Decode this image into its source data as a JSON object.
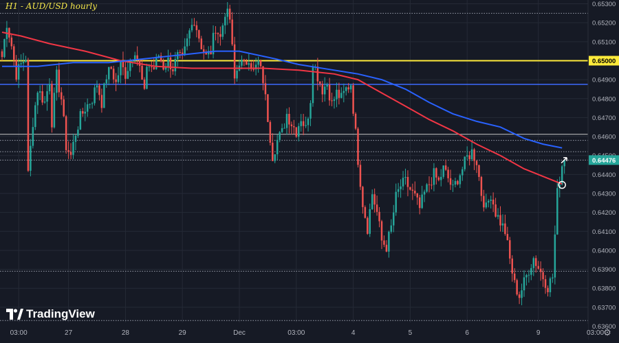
{
  "header": {
    "title": "H1 - AUD/USD hourly"
  },
  "branding": {
    "name": "TradingView"
  },
  "colors": {
    "background": "#161a25",
    "up": "#26a69a",
    "down": "#ef5350",
    "ma_red": "#f23645",
    "ma_blue": "#2962ff",
    "level_yellow": "#ffeb3b",
    "level_blue": "#3d6bff",
    "grid": "#252a36",
    "axis_text": "#b2b5be"
  },
  "chart_data": {
    "type": "candlestick",
    "title": "H1 - AUD/USD hourly",
    "timeframe": "1h",
    "ylim": [
      0.6362,
      0.6532
    ],
    "y_ticks": [
      "0.65300",
      "0.65200",
      "0.65100",
      "0.65000",
      "0.64900",
      "0.64800",
      "0.64700",
      "0.64600",
      "0.64500",
      "0.64400",
      "0.64300",
      "0.64200",
      "0.64100",
      "0.64000",
      "0.63900",
      "0.63800",
      "0.63700",
      "0.63600"
    ],
    "x_ticks": [
      {
        "label": "03:00",
        "bar": 7
      },
      {
        "label": "27",
        "bar": 28
      },
      {
        "label": "28",
        "bar": 52
      },
      {
        "label": "29",
        "bar": 76
      },
      {
        "label": "Dec",
        "bar": 100
      },
      {
        "label": "03:00",
        "bar": 124
      },
      {
        "label": "4",
        "bar": 148
      },
      {
        "label": "5",
        "bar": 172
      },
      {
        "label": "6",
        "bar": 196
      },
      {
        "label": "9",
        "bar": 226
      },
      {
        "label": "03:00",
        "bar": 250
      }
    ],
    "current_price": {
      "label": "0.64476",
      "value": 0.64476
    },
    "levels": [
      {
        "name": "0.65000 resistance",
        "label": "0.65000",
        "value": 0.65,
        "style": "solid",
        "color": "#ffeb3b",
        "width": 2
      },
      {
        "name": "blue level",
        "value": 0.64875,
        "style": "solid",
        "color": "#3d6bff",
        "width": 1.5
      },
      {
        "name": "white level",
        "value": 0.64612,
        "style": "solid",
        "color": "#c8c8c8",
        "width": 1
      },
      {
        "name": "dotted 0.6525",
        "value": 0.6525,
        "style": "dotted",
        "color": "#9aa0ad",
        "width": 1
      },
      {
        "name": "dotted 0.6458",
        "value": 0.6458,
        "style": "dotted",
        "color": "#9aa0ad",
        "width": 1
      },
      {
        "name": "dotted 0.6452",
        "value": 0.6452,
        "style": "dotted",
        "color": "#9aa0ad",
        "width": 1
      },
      {
        "name": "dotted 0.6447",
        "value": 0.64476,
        "style": "dotted",
        "color": "#9aa0ad",
        "width": 1
      },
      {
        "name": "dotted 0.6389",
        "value": 0.6389,
        "style": "dotted",
        "color": "#9aa0ad",
        "width": 1
      },
      {
        "name": "dotted 0.6363",
        "value": 0.6363,
        "style": "dotted",
        "color": "#9aa0ad",
        "width": 1
      }
    ],
    "close_path": [
      [
        0,
        0.6502
      ],
      [
        2,
        0.652
      ],
      [
        4,
        0.6508
      ],
      [
        6,
        0.6493
      ],
      [
        8,
        0.6498
      ],
      [
        10,
        0.6502
      ],
      [
        11,
        0.644
      ],
      [
        13,
        0.6468
      ],
      [
        15,
        0.6485
      ],
      [
        18,
        0.6478
      ],
      [
        20,
        0.649
      ],
      [
        21,
        0.6468
      ],
      [
        23,
        0.6492
      ],
      [
        25,
        0.648
      ],
      [
        27,
        0.6455
      ],
      [
        29,
        0.645
      ],
      [
        31,
        0.6462
      ],
      [
        33,
        0.647
      ],
      [
        35,
        0.6475
      ],
      [
        38,
        0.648
      ],
      [
        40,
        0.6488
      ],
      [
        42,
        0.6478
      ],
      [
        44,
        0.6492
      ],
      [
        46,
        0.6496
      ],
      [
        48,
        0.6488
      ],
      [
        50,
        0.6498
      ],
      [
        52,
        0.6493
      ],
      [
        54,
        0.65
      ],
      [
        56,
        0.6506
      ],
      [
        58,
        0.6496
      ],
      [
        60,
        0.6482
      ],
      [
        61,
        0.6498
      ],
      [
        64,
        0.6496
      ],
      [
        66,
        0.6503
      ],
      [
        68,
        0.6497
      ],
      [
        70,
        0.65
      ],
      [
        72,
        0.6496
      ],
      [
        74,
        0.6502
      ],
      [
        76,
        0.65
      ],
      [
        79,
        0.6515
      ],
      [
        81,
        0.6522
      ],
      [
        84,
        0.6508
      ],
      [
        86,
        0.6502
      ],
      [
        88,
        0.6505
      ],
      [
        90,
        0.6518
      ],
      [
        92,
        0.6512
      ],
      [
        94,
        0.6526
      ],
      [
        96,
        0.6522
      ],
      [
        98,
        0.649
      ],
      [
        100,
        0.65
      ],
      [
        102,
        0.6497
      ],
      [
        104,
        0.6502
      ],
      [
        106,
        0.6494
      ],
      [
        108,
        0.6499
      ],
      [
        110,
        0.649
      ],
      [
        112,
        0.647
      ],
      [
        114,
        0.645
      ],
      [
        116,
        0.6458
      ],
      [
        118,
        0.6462
      ],
      [
        120,
        0.6472
      ],
      [
        122,
        0.6467
      ],
      [
        124,
        0.6463
      ],
      [
        126,
        0.647
      ],
      [
        128,
        0.6464
      ],
      [
        130,
        0.648
      ],
      [
        131,
        0.65
      ],
      [
        133,
        0.6492
      ],
      [
        135,
        0.6485
      ],
      [
        137,
        0.6488
      ],
      [
        139,
        0.6477
      ],
      [
        141,
        0.6483
      ],
      [
        143,
        0.648
      ],
      [
        145,
        0.6485
      ],
      [
        147,
        0.6488
      ],
      [
        148,
        0.6475
      ],
      [
        150,
        0.6448
      ],
      [
        152,
        0.6425
      ],
      [
        154,
        0.6412
      ],
      [
        156,
        0.643
      ],
      [
        158,
        0.642
      ],
      [
        160,
        0.6405
      ],
      [
        162,
        0.6402
      ],
      [
        164,
        0.6412
      ],
      [
        166,
        0.6428
      ],
      [
        168,
        0.6434
      ],
      [
        170,
        0.6436
      ],
      [
        172,
        0.6432
      ],
      [
        174,
        0.6428
      ],
      [
        176,
        0.6422
      ],
      [
        178,
        0.643
      ],
      [
        180,
        0.6435
      ],
      [
        182,
        0.644
      ],
      [
        184,
        0.6436
      ],
      [
        186,
        0.6443
      ],
      [
        188,
        0.6438
      ],
      [
        190,
        0.6432
      ],
      [
        192,
        0.6438
      ],
      [
        194,
        0.6443
      ],
      [
        196,
        0.6449
      ],
      [
        198,
        0.6452
      ],
      [
        200,
        0.6447
      ],
      [
        202,
        0.643
      ],
      [
        204,
        0.6422
      ],
      [
        206,
        0.643
      ],
      [
        208,
        0.642
      ],
      [
        210,
        0.6415
      ],
      [
        212,
        0.641
      ],
      [
        214,
        0.6395
      ],
      [
        216,
        0.6382
      ],
      [
        218,
        0.6376
      ],
      [
        220,
        0.6383
      ],
      [
        222,
        0.639
      ],
      [
        224,
        0.6396
      ],
      [
        226,
        0.6391
      ],
      [
        228,
        0.6386
      ],
      [
        230,
        0.6381
      ],
      [
        232,
        0.6386
      ],
      [
        234,
        0.643
      ],
      [
        236,
        0.6445
      ],
      [
        237,
        0.64476
      ]
    ],
    "series": [
      {
        "name": "Red moving average",
        "color": "#f23645",
        "points": [
          [
            0,
            0.6515
          ],
          [
            8,
            0.6513
          ],
          [
            20,
            0.6509
          ],
          [
            35,
            0.6505
          ],
          [
            50,
            0.65
          ],
          [
            65,
            0.6497
          ],
          [
            80,
            0.6496
          ],
          [
            95,
            0.6496
          ],
          [
            110,
            0.6496
          ],
          [
            125,
            0.6495
          ],
          [
            140,
            0.6493
          ],
          [
            150,
            0.649
          ],
          [
            160,
            0.6483
          ],
          [
            170,
            0.6476
          ],
          [
            180,
            0.6469
          ],
          [
            190,
            0.6463
          ],
          [
            200,
            0.6456
          ],
          [
            210,
            0.645
          ],
          [
            220,
            0.6443
          ],
          [
            230,
            0.6438
          ],
          [
            236,
            0.6435
          ]
        ]
      },
      {
        "name": "Blue moving average",
        "color": "#2962ff",
        "points": [
          [
            0,
            0.6497
          ],
          [
            15,
            0.6497
          ],
          [
            30,
            0.6499
          ],
          [
            45,
            0.6499
          ],
          [
            60,
            0.6501
          ],
          [
            75,
            0.6503
          ],
          [
            90,
            0.6505
          ],
          [
            100,
            0.6505
          ],
          [
            115,
            0.6501
          ],
          [
            125,
            0.6498
          ],
          [
            140,
            0.6495
          ],
          [
            150,
            0.6493
          ],
          [
            160,
            0.649
          ],
          [
            170,
            0.6485
          ],
          [
            180,
            0.6478
          ],
          [
            190,
            0.6472
          ],
          [
            200,
            0.6468
          ],
          [
            210,
            0.6465
          ],
          [
            220,
            0.6459
          ],
          [
            228,
            0.6456
          ],
          [
            236,
            0.6454
          ]
        ]
      }
    ],
    "markers": [
      {
        "name": "crossover circle",
        "bar": 236,
        "value": 0.64345
      },
      {
        "name": "arrow annotation",
        "bar": 238,
        "value": 0.645
      }
    ]
  }
}
